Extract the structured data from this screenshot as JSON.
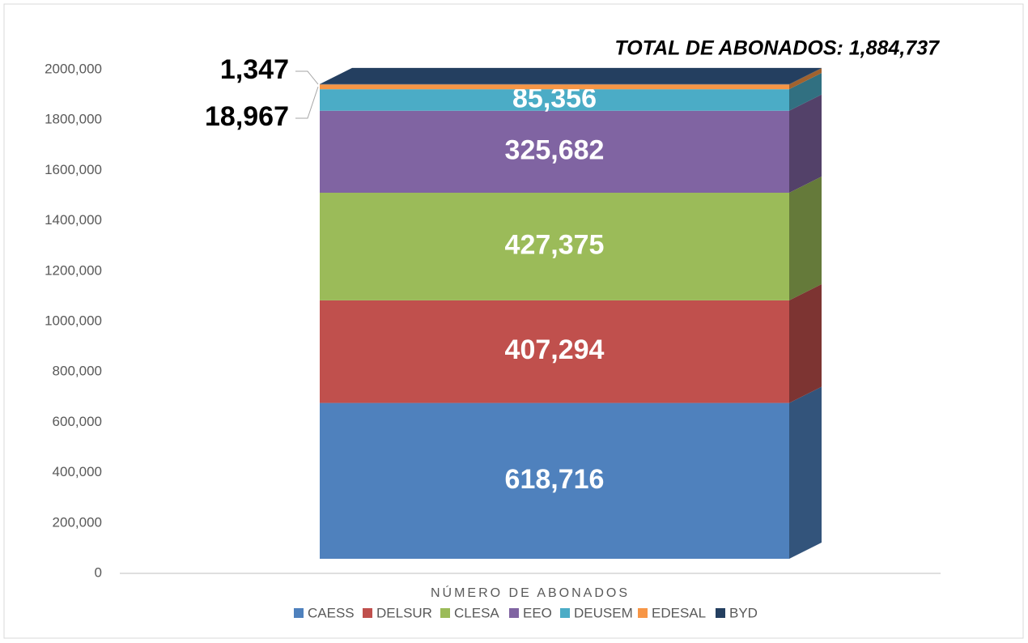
{
  "chart_data": {
    "type": "bar3d_stacked",
    "annotation": "TOTAL DE ABONADOS: 1,884,737",
    "x_label": "NÚMERO DE ABONADOS",
    "categories": [
      "NÚMERO DE ABONADOS"
    ],
    "series": [
      {
        "name": "CAESS",
        "color": "#4f81bd",
        "values": [
          618716
        ],
        "value_labels": [
          "618,716"
        ]
      },
      {
        "name": "DELSUR",
        "color": "#c0504d",
        "values": [
          407294
        ],
        "value_labels": [
          "407,294"
        ]
      },
      {
        "name": "CLESA",
        "color": "#9bbb59",
        "values": [
          427375
        ],
        "value_labels": [
          "427,375"
        ]
      },
      {
        "name": "EEO",
        "color": "#8064a2",
        "values": [
          325682
        ],
        "value_labels": [
          "325,682"
        ]
      },
      {
        "name": "DEUSEM",
        "color": "#4bacc6",
        "values": [
          85356
        ],
        "value_labels": [
          "85,356"
        ]
      },
      {
        "name": "EDESAL",
        "color": "#f79646",
        "values": [
          18967
        ],
        "value_labels": [
          "18,967"
        ]
      },
      {
        "name": "BYD",
        "color": "#243f60",
        "values": [
          1347
        ],
        "value_labels": [
          "1,347"
        ]
      }
    ],
    "ylim": [
      0,
      2000000
    ],
    "yticks": [
      0,
      {
        "value": 200000,
        "label": "200,000"
      },
      {
        "value": 400000,
        "label": "400,000"
      },
      {
        "value": 600000,
        "label": "600,000"
      },
      {
        "value": 800000,
        "label": "800,000"
      },
      {
        "value": 1000000,
        "label": "1000,000"
      },
      {
        "value": 1200000,
        "label": "1200,000"
      },
      {
        "value": 1400000,
        "label": "1400,000"
      },
      {
        "value": 1600000,
        "label": "1600,000"
      },
      {
        "value": 1800000,
        "label": "1800,000"
      },
      {
        "value": 2000000,
        "label": "2000,000"
      }
    ],
    "grid": false
  }
}
